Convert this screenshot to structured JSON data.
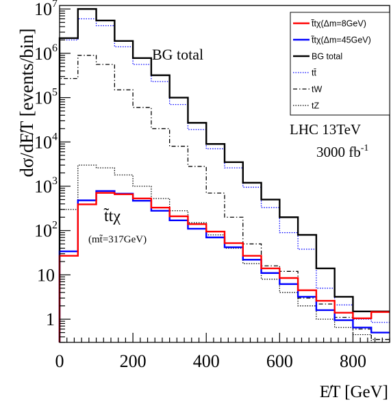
{
  "chart_data": {
    "type": "line",
    "xlabel": "E̸T [GeV]",
    "ylabel": "dσ/dE̸T [events/bin]",
    "log_y": true,
    "xlim": [
      0,
      900
    ],
    "ylim": [
      0.3,
      12000000
    ],
    "x_ticks": [
      {
        "v": 0,
        "label": "0"
      },
      {
        "v": 200,
        "label": "200"
      },
      {
        "v": 400,
        "label": "400"
      },
      {
        "v": 600,
        "label": "600"
      },
      {
        "v": 800,
        "label": "800"
      }
    ],
    "y_ticks": [
      {
        "v": 1,
        "label": "1"
      },
      {
        "v": 10,
        "label": "10"
      },
      {
        "v": 100,
        "label": "10",
        "sup": "2"
      },
      {
        "v": 1000,
        "label": "10",
        "sup": "3"
      },
      {
        "v": 10000,
        "label": "10",
        "sup": "4"
      },
      {
        "v": 100000,
        "label": "10",
        "sup": "5"
      },
      {
        "v": 1000000,
        "label": "10",
        "sup": "6"
      },
      {
        "v": 10000000,
        "label": "10",
        "sup": "7"
      }
    ],
    "bin_edges": [
      0,
      50,
      100,
      150,
      200,
      250,
      300,
      350,
      400,
      450,
      500,
      550,
      600,
      650,
      700,
      750,
      800,
      850,
      900
    ],
    "series": [
      {
        "name": "t̃tχ(Δm=8GeV)",
        "color": "#ff0000",
        "dash": "",
        "width": 2.4,
        "values": [
          27,
          390,
          710,
          660,
          530,
          330,
          210,
          140,
          95,
          52,
          27,
          14,
          8.5,
          4.5,
          2.6,
          1.4,
          1.05,
          1.45
        ]
      },
      {
        "name": "t̃tχ(Δm=45GeV)",
        "color": "#0000ff",
        "dash": "",
        "width": 2.4,
        "values": [
          34,
          480,
          780,
          680,
          470,
          280,
          170,
          110,
          70,
          42,
          22,
          11,
          6.2,
          3.2,
          1.6,
          0.95,
          0.65,
          0.5
        ]
      },
      {
        "name": "BG total",
        "color": "#000000",
        "dash": "",
        "width": 2.4,
        "values": [
          2200000,
          10000000,
          5500000,
          1900000,
          780000,
          320000,
          100000,
          27000,
          9000,
          3500,
          1200,
          500,
          200,
          80,
          14,
          3.2,
          1.5,
          1.5
        ]
      },
      {
        "name": "tt̄",
        "color": "#0000ff",
        "dash": "1.5,2",
        "width": 1.3,
        "values": [
          2000000,
          6000000,
          4200000,
          1400000,
          560000,
          230000,
          70000,
          19000,
          7000,
          2600,
          950,
          330,
          90,
          38,
          5,
          2.1,
          1.0,
          0.85
        ]
      },
      {
        "name": "tW",
        "color": "#000000",
        "dash": "6,3,1.5,3",
        "width": 1.3,
        "values": [
          270000,
          900000,
          560000,
          150000,
          60000,
          20000,
          8000,
          2800,
          700,
          200,
          50,
          16,
          12,
          3,
          2.2,
          1.1,
          0.6,
          0.35
        ]
      },
      {
        "name": "tZ",
        "color": "#000000",
        "dash": "1.5,2",
        "width": 1.3,
        "values": [
          300,
          3000,
          2600,
          1800,
          1000,
          530,
          280,
          150,
          80,
          40,
          18,
          8,
          4,
          2,
          1.0,
          0.65,
          0.45,
          0.3
        ]
      }
    ],
    "legend_position": "top-right",
    "annotations": {
      "bg_label": "BG total",
      "lhc": "LHC 13TeV",
      "lumi": "3000 fb",
      "lumi_sup": "-1",
      "signal_label": "t̃tχ",
      "mass_label": "(mt̃=317GeV)"
    }
  }
}
